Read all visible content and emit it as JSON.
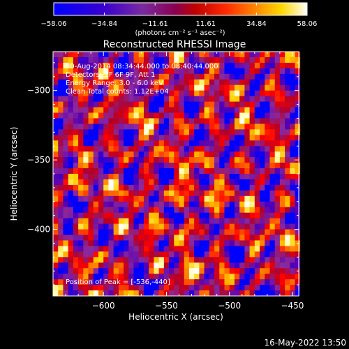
{
  "chart_data": {
    "type": "heatmap",
    "title": "Reconstructed RHESSI Image",
    "xlabel": "Heliocentric X (arcsec)",
    "ylabel": "Heliocentric Y (arcsec)",
    "xlim": [
      -640,
      -445
    ],
    "ylim": [
      -448,
      -272
    ],
    "xticks": [
      -600,
      -550,
      -500,
      -450
    ],
    "yticks": [
      -300,
      -350,
      -400
    ],
    "xtick_labels": [
      "−600",
      "−550",
      "−500",
      "−450"
    ],
    "ytick_labels": [
      "−300",
      "−350",
      "−400"
    ],
    "colorbar": {
      "min": -58.06,
      "max": 58.06,
      "ticks": [
        -58.06,
        -34.84,
        -11.61,
        11.61,
        34.84,
        58.06
      ],
      "tick_labels": [
        "−58.06",
        "−34.84",
        "−11.61",
        "11.61",
        "34.84",
        "58.06"
      ],
      "units_label": "(photons cm⁻² s⁻¹ asec⁻²)"
    },
    "annotations": [
      "30-Aug-2014 08:34:44.000 to 08:40:44.000",
      "Detectors: 3F 6F 9F, Att 1",
      "Energy Range: 3.0 - 6.0 keV",
      "Clean     Total counts: 1.12E+04"
    ],
    "peak_label": "Position of Peak = [-536,-440]",
    "peak": [
      -536,
      -440
    ],
    "pixel_size_arcsec": 4,
    "colormap": [
      "#0000ff",
      "#5a00b0",
      "#8a2aa0",
      "#b0002a",
      "#ff0000",
      "#ff7a00",
      "#ffd000",
      "#ffffb0",
      "#ffffff"
    ],
    "render_bounds": [
      -0.5,
      1.0
    ]
  },
  "footer_timestamp": "16-May-2022 13:50"
}
